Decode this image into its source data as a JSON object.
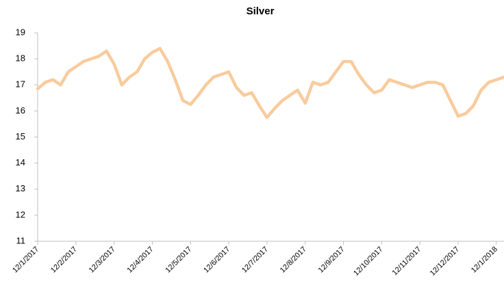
{
  "chart_data": {
    "type": "line",
    "title": "Silver",
    "categories": [
      "12/1/2017",
      null,
      null,
      null,
      null,
      "12/2/2017",
      null,
      null,
      null,
      null,
      "12/3/2017",
      null,
      null,
      null,
      null,
      "12/4/2017",
      null,
      null,
      null,
      null,
      "12/5/2017",
      null,
      null,
      null,
      null,
      "12/6/2017",
      null,
      null,
      null,
      null,
      "12/7/2017",
      null,
      null,
      null,
      null,
      "12/8/2017",
      null,
      null,
      null,
      null,
      "12/9/2017",
      null,
      null,
      null,
      null,
      "12/10/2017",
      null,
      null,
      null,
      null,
      "12/11/2017",
      null,
      null,
      null,
      null,
      "12/12/2017",
      null,
      null,
      null,
      null,
      "12/1/2018",
      null
    ],
    "series": [
      {
        "name": "Silver",
        "color": "#f9cb9c",
        "values": [
          16.85,
          17.1,
          17.2,
          17.0,
          17.5,
          17.7,
          17.9,
          18.0,
          18.1,
          18.3,
          17.8,
          17.0,
          17.3,
          17.5,
          18.0,
          18.25,
          18.4,
          17.9,
          17.2,
          16.4,
          16.25,
          16.6,
          17.0,
          17.3,
          17.4,
          17.5,
          16.9,
          16.6,
          16.7,
          16.2,
          15.75,
          16.1,
          16.4,
          16.6,
          16.8,
          16.3,
          17.1,
          17.0,
          17.1,
          17.5,
          17.9,
          17.9,
          17.4,
          17.0,
          16.7,
          16.8,
          17.2,
          17.1,
          17.0,
          16.9,
          17.0,
          17.1,
          17.1,
          17.0,
          16.4,
          15.8,
          15.9,
          16.2,
          16.8,
          17.1,
          17.2,
          17.3
        ]
      }
    ],
    "ylim": [
      11,
      19
    ],
    "yticks": [
      11,
      12,
      13,
      14,
      15,
      16,
      17,
      18,
      19
    ],
    "grid": false
  }
}
